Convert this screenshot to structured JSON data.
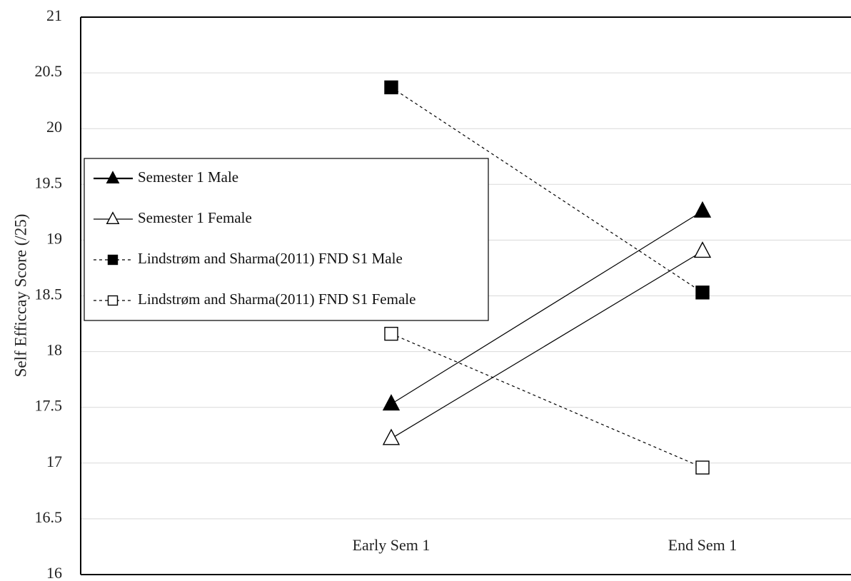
{
  "chart_data": {
    "type": "line",
    "title": "",
    "xlabel": "",
    "ylabel": "Self Efficcay Score (/25)",
    "categories": [
      "Early Sem 1",
      "End Sem 1"
    ],
    "ylim": [
      16,
      21
    ],
    "yticks": [
      "16",
      "16.5",
      "17",
      "17.5",
      "18",
      "18.5",
      "19",
      "19.5",
      "20",
      "20.5",
      "21"
    ],
    "grid": "horizontal",
    "legend_position": "left",
    "series": [
      {
        "name": "Semester 1 Male",
        "values": [
          17.53,
          19.26
        ],
        "marker": "triangle",
        "filled": true,
        "dashed": false,
        "color": "#000000"
      },
      {
        "name": "Semester 1 Female",
        "values": [
          17.22,
          18.9
        ],
        "marker": "triangle",
        "filled": false,
        "dashed": false,
        "color": "#000000"
      },
      {
        "name": "Lindstrøm and Sharma(2011) FND S1 Male",
        "values": [
          20.37,
          18.53
        ],
        "marker": "square",
        "filled": true,
        "dashed": true,
        "color": "#000000"
      },
      {
        "name": "Lindstrøm and Sharma(2011) FND S1 Female",
        "values": [
          18.16,
          16.96
        ],
        "marker": "square",
        "filled": false,
        "dashed": true,
        "color": "#000000"
      }
    ]
  }
}
